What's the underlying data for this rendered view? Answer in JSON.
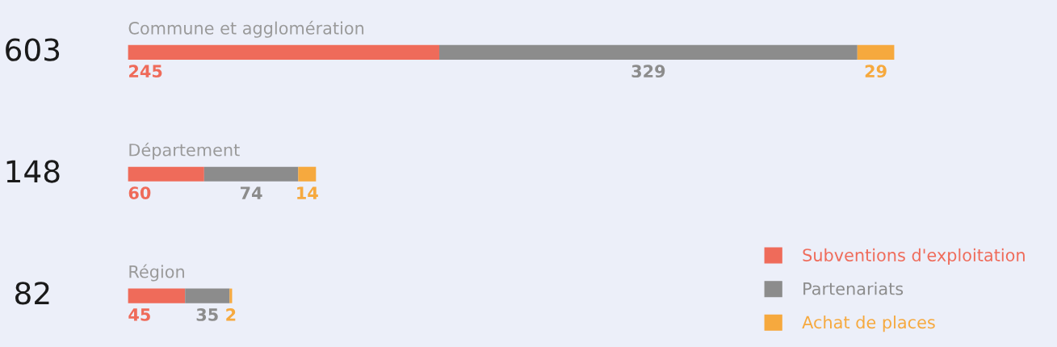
{
  "chart_data": {
    "type": "bar",
    "orientation": "horizontal",
    "stacked": true,
    "categories": [
      "Commune et agglomération",
      "Département",
      "Région"
    ],
    "series": [
      {
        "name": "Subventions d'exploitation",
        "color": "#ef6b5a",
        "values": [
          245,
          60,
          45
        ]
      },
      {
        "name": "Partenariats",
        "color": "#8c8c8c",
        "values": [
          329,
          74,
          35
        ]
      },
      {
        "name": "Achat de places",
        "color": "#f6a93e",
        "values": [
          29,
          14,
          2
        ]
      }
    ],
    "totals": [
      "603",
      "148",
      "82"
    ],
    "data_labels": true,
    "tick_labels": false,
    "legend": "bottom right"
  }
}
